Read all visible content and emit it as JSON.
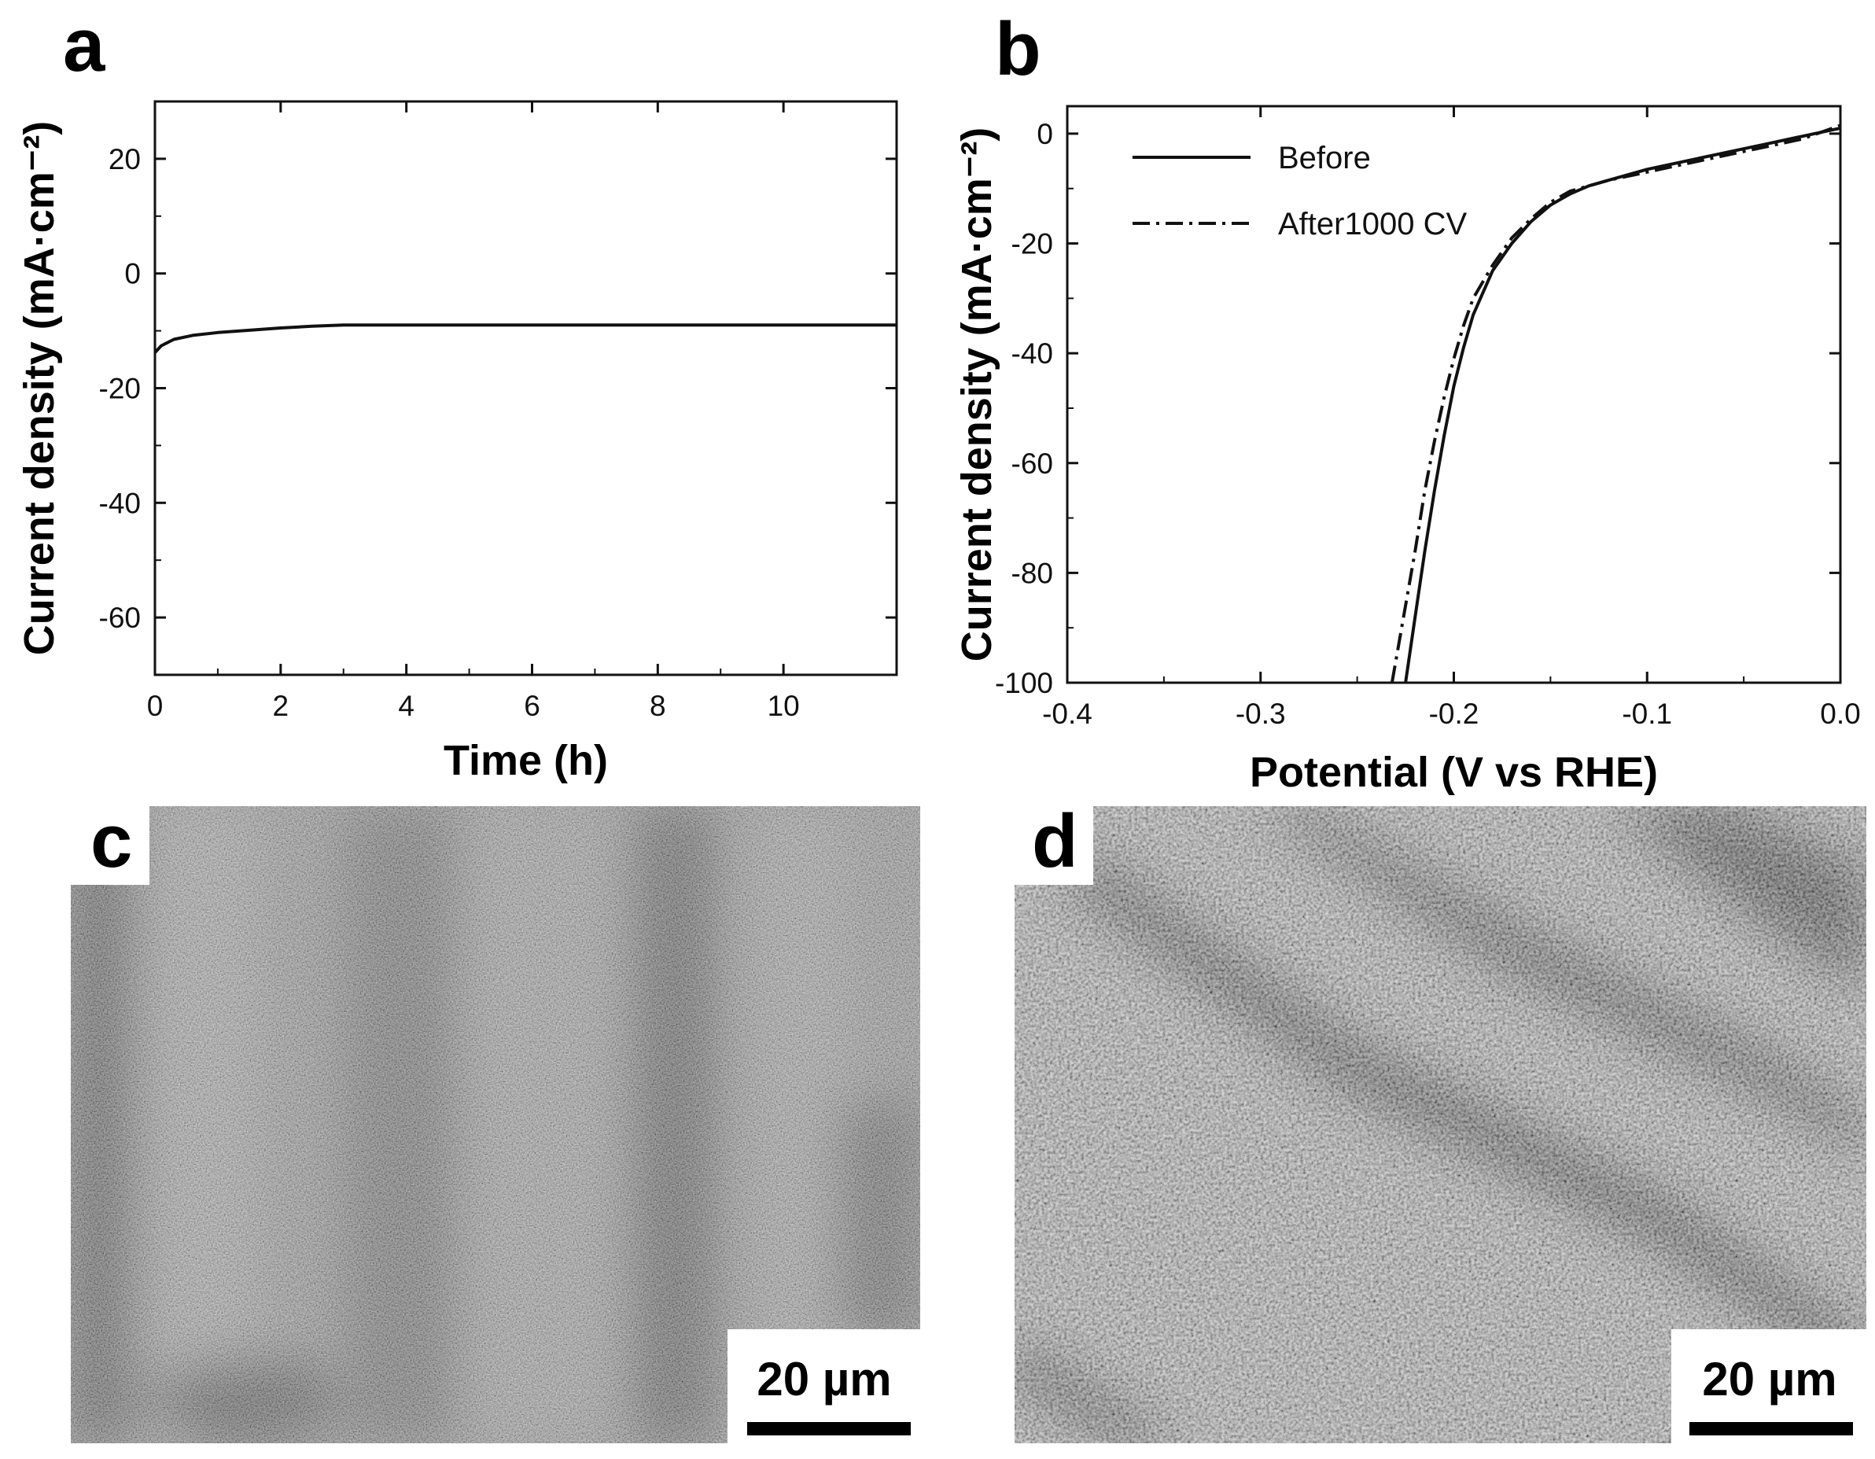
{
  "panels": {
    "a": {
      "letter": "a"
    },
    "b": {
      "letter": "b"
    },
    "c": {
      "letter": "c",
      "scale_bar": "20 µm"
    },
    "d": {
      "letter": "d",
      "scale_bar": "20 µm"
    }
  },
  "colors": {
    "line": "#111111",
    "sem_background": "#7a7a7a",
    "sem_light": "#b4b4b4",
    "sem_dark": "#2a2a2a"
  },
  "chart_data": [
    {
      "type": "line",
      "panel": "a",
      "xlabel": "Time (h)",
      "ylabel": "Current density (mA·cm⁻²)",
      "xlim": [
        0,
        11.8
      ],
      "ylim": [
        -70,
        30
      ],
      "xticks": [
        0,
        2,
        4,
        6,
        8,
        10
      ],
      "xtick_labels": [
        "0",
        "2",
        "4",
        "6",
        "8",
        "10"
      ],
      "yticks": [
        20,
        0,
        -20,
        -40,
        -60
      ],
      "ytick_labels": [
        "20",
        "0",
        "-20",
        "-40",
        "-60"
      ],
      "series": [
        {
          "style": "solid",
          "x": [
            0,
            0.1,
            0.3,
            0.6,
            1,
            1.5,
            2,
            2.5,
            3,
            4,
            6,
            8,
            10,
            11.8
          ],
          "y": [
            -13.8,
            -12.6,
            -11.5,
            -10.8,
            -10.3,
            -9.9,
            -9.5,
            -9.2,
            -9.0,
            -9.0,
            -9.0,
            -9.0,
            -9.0,
            -9.0
          ]
        }
      ]
    },
    {
      "type": "line",
      "panel": "b",
      "xlabel": "Potential (V vs RHE)",
      "ylabel": "Current density (mA·cm⁻²)",
      "xlim": [
        -0.4,
        0.0
      ],
      "ylim": [
        -100,
        5
      ],
      "xticks": [
        -0.4,
        -0.3,
        -0.2,
        -0.1,
        0.0
      ],
      "xtick_labels": [
        "-0.4",
        "-0.3",
        "-0.2",
        "-0.1",
        "0.0"
      ],
      "yticks": [
        0,
        -20,
        -40,
        -60,
        -80,
        -100
      ],
      "ytick_labels": [
        "0",
        "-20",
        "-40",
        "-60",
        "-80",
        "-100"
      ],
      "legend_position": "top-left",
      "series": [
        {
          "name": "Before",
          "style": "solid",
          "x": [
            -0.225,
            -0.22,
            -0.215,
            -0.21,
            -0.205,
            -0.2,
            -0.195,
            -0.19,
            -0.18,
            -0.17,
            -0.16,
            -0.15,
            -0.14,
            -0.13,
            -0.12,
            -0.1,
            -0.08,
            -0.06,
            -0.04,
            -0.02,
            0.0
          ],
          "y": [
            -100,
            -88,
            -76,
            -65,
            -55,
            -46,
            -39,
            -33,
            -25,
            -20,
            -16,
            -13,
            -11,
            -9.5,
            -8.5,
            -6.5,
            -5,
            -3.5,
            -2,
            -0.5,
            1
          ]
        },
        {
          "name": "After1000 CV",
          "style": "dashdot",
          "x": [
            -0.232,
            -0.226,
            -0.22,
            -0.215,
            -0.21,
            -0.205,
            -0.2,
            -0.195,
            -0.19,
            -0.18,
            -0.17,
            -0.16,
            -0.15,
            -0.14,
            -0.13,
            -0.12,
            -0.1,
            -0.08,
            -0.06,
            -0.04,
            -0.02,
            0.0
          ],
          "y": [
            -100,
            -88,
            -76,
            -65,
            -56,
            -48,
            -41,
            -35,
            -30,
            -24,
            -19,
            -15.5,
            -12.5,
            -10.5,
            -9.5,
            -8.5,
            -7,
            -5.5,
            -4,
            -2.5,
            -1,
            1.5
          ]
        }
      ]
    }
  ]
}
